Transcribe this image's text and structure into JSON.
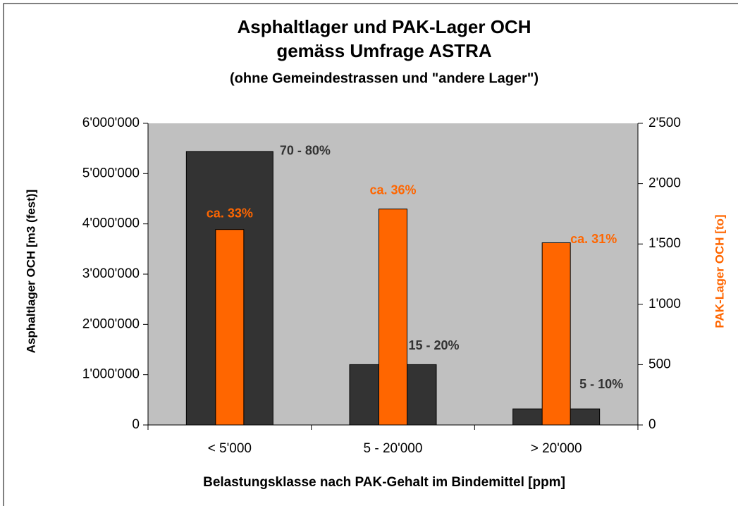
{
  "chart_data": {
    "type": "bar",
    "title": [
      "Asphaltlager und PAK-Lager OCH",
      "gemäss Umfrage ASTRA",
      "(ohne Gemeindestrassen und \"andere Lager\")"
    ],
    "x_label": "Belastungsklasse nach PAK-Gehalt im Bindemittel [ppm]",
    "y_label": "Asphaltlager OCH [m3 (fest)]",
    "y2_label": "PAK-Lager OCH [to]",
    "categories": [
      "< 5'000",
      "5 - 20'000",
      "> 20'000"
    ],
    "series": [
      {
        "color": "#333333",
        "axis": "y",
        "values": [
          5440000,
          1200000,
          320000
        ],
        "annotations": [
          "70 - 80%",
          "15 - 20%",
          "5 - 10%"
        ]
      },
      {
        "color": "#ff6600",
        "axis": "y2",
        "values": [
          1620,
          1790,
          1510
        ],
        "annotations": [
          "ca. 33%",
          "ca. 36%",
          "ca. 31%"
        ]
      }
    ],
    "ylim": [
      0,
      6000000
    ],
    "yticks": [
      0,
      {
        "value": 1000000,
        "label": "1'000'000"
      },
      {
        "value": 2000000,
        "label": "2'000'000"
      },
      {
        "value": 3000000,
        "label": "3'000'000"
      },
      {
        "value": 4000000,
        "label": "4'000'000"
      },
      {
        "value": 5000000,
        "label": "5'000'000"
      },
      {
        "value": 6000000,
        "label": "6'000'000"
      }
    ],
    "y2lim": [
      0,
      2500
    ],
    "y2ticks": [
      0,
      500,
      {
        "value": 1000,
        "label": "1'000"
      },
      {
        "value": 1500,
        "label": "1'500"
      },
      {
        "value": 2000,
        "label": "2'000"
      },
      {
        "value": 2500,
        "label": "2'500"
      }
    ],
    "plot_background": "#c0c0c0"
  }
}
